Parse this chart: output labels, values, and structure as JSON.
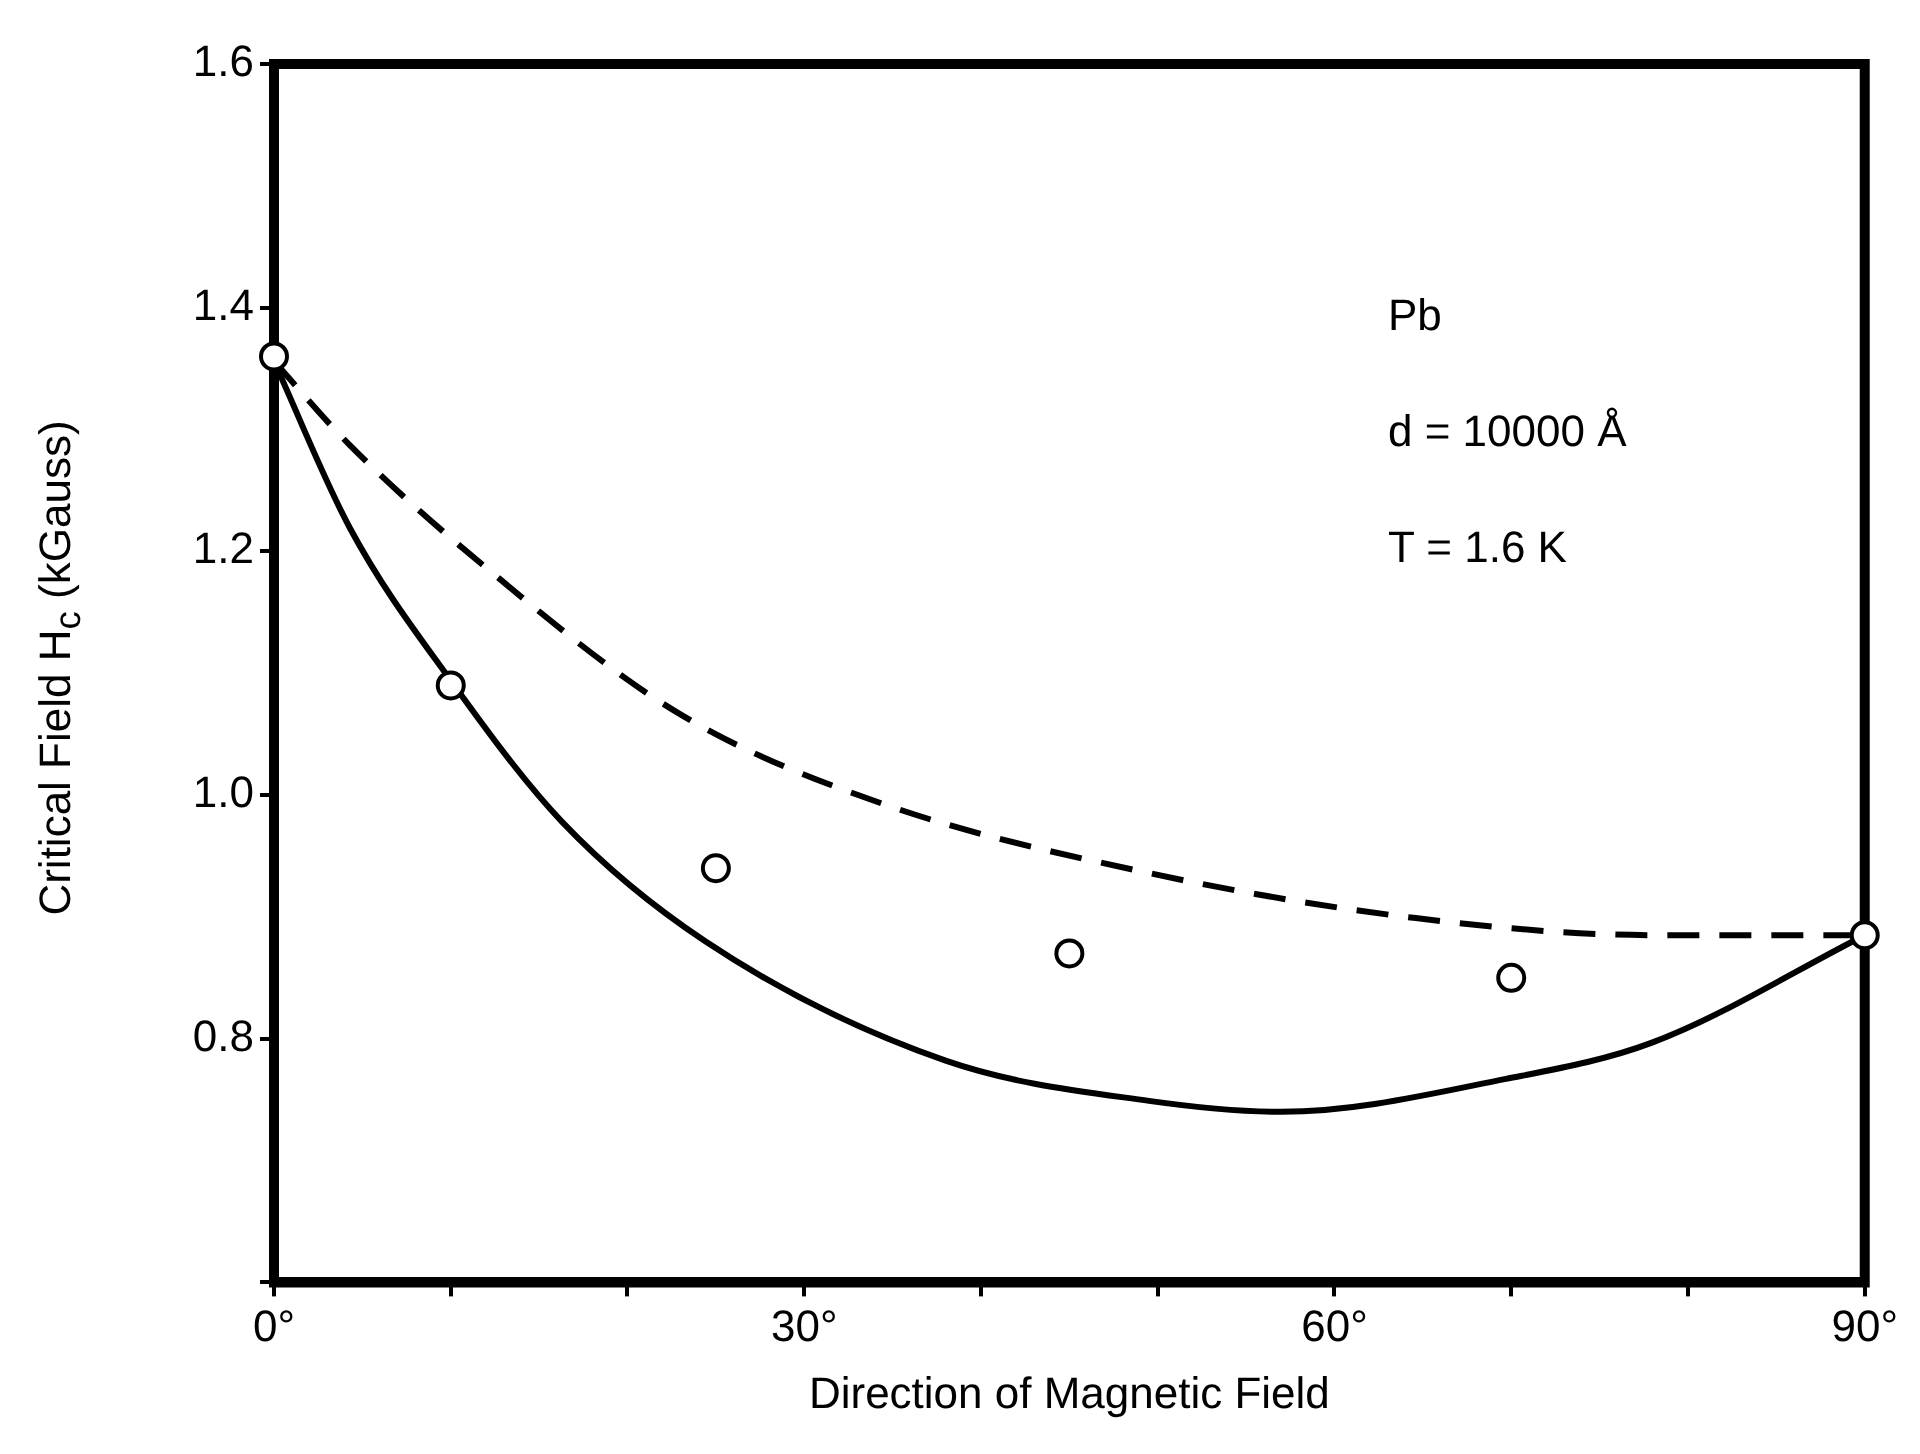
{
  "chart_data": {
    "type": "scatter",
    "xlabel": "Direction of Magnetic Field",
    "ylabel": "Critical  Field  H$_{c}$  (kGauss)",
    "xlim": [
      0,
      90
    ],
    "xticks": [
      {
        "value": 0,
        "label": "0°"
      },
      {
        "value": 10,
        "label": null
      },
      {
        "value": 20,
        "label": null
      },
      {
        "value": 30,
        "label": "30°"
      },
      {
        "value": 40,
        "label": null
      },
      {
        "value": 50,
        "label": null
      },
      {
        "value": 60,
        "label": "60°"
      },
      {
        "value": 70,
        "label": null
      },
      {
        "value": 80,
        "label": null
      },
      {
        "value": 90,
        "label": "90°"
      }
    ],
    "ylim": [
      0.6,
      1.6
    ],
    "yticks": [
      {
        "value": 0.6,
        "label": null
      },
      0.8,
      {
        "value": 1,
        "label": "1.0"
      },
      1.2,
      1.4,
      1.6
    ],
    "grid": false,
    "legend": false,
    "series": [
      {
        "type": "line",
        "color": "#000000",
        "line_style": "dashed",
        "marker": "none",
        "x": [
          0,
          4.3,
          11.8,
          22.9,
          34.4,
          49.5,
          64.6,
          78,
          90
        ],
        "values": [
          1.356,
          1.287,
          1.189,
          1.067,
          0.993,
          0.936,
          0.899,
          0.885,
          0.885
        ]
      },
      {
        "type": "line",
        "color": "#000000",
        "line_style": "solid",
        "marker": "none",
        "x": [
          0,
          4.3,
          10,
          16.3,
          24.4,
          38,
          49.5,
          57,
          69.7,
          78,
          90
        ],
        "values": [
          1.356,
          1.219,
          1.094,
          0.978,
          0.88,
          0.782,
          0.749,
          0.74,
          0.767,
          0.797,
          0.885
        ]
      },
      {
        "type": "scatter",
        "color": "#000000",
        "marker": "circle",
        "x": [
          0,
          10,
          25,
          45,
          70,
          90
        ],
        "values": [
          1.36,
          1.09,
          0.94,
          0.87,
          0.85,
          0.885
        ]
      }
    ],
    "annotations": [
      "Pb",
      "d = 10000 Å",
      "T = 1.6 K"
    ]
  }
}
